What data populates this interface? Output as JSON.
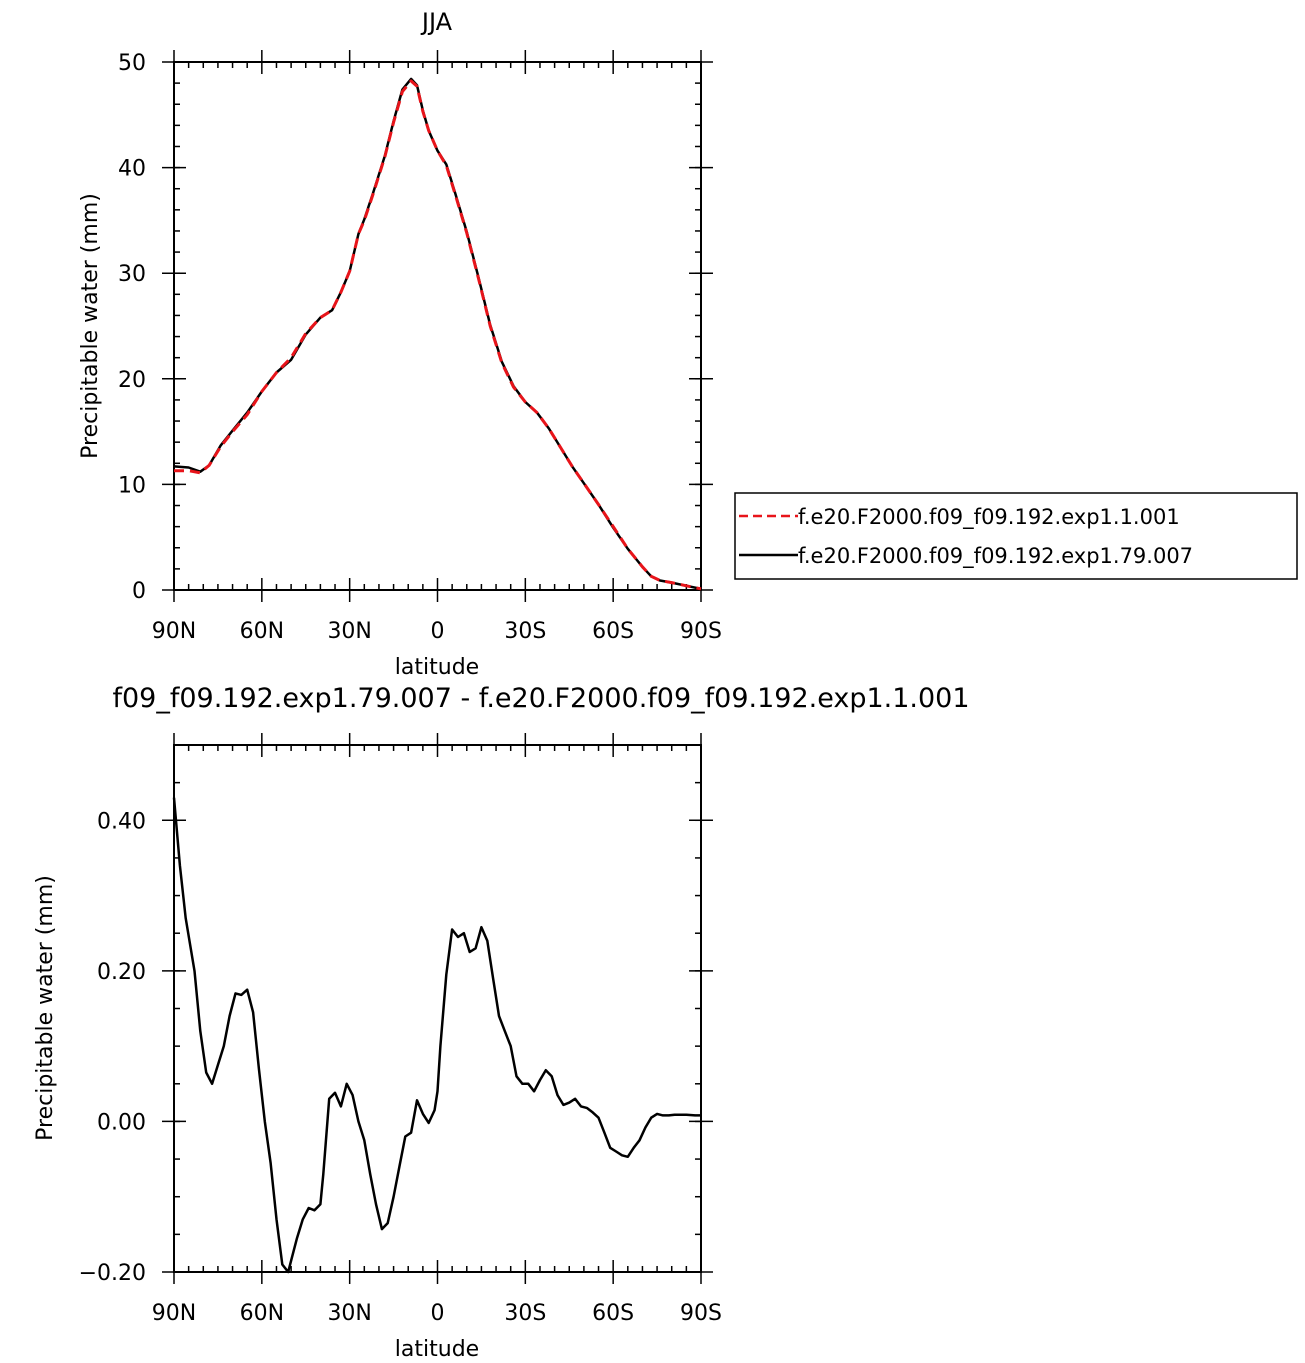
{
  "chart_data": [
    {
      "type": "line",
      "title": "JJA",
      "xlabel": "latitude",
      "ylabel": "Precipitable water (mm)",
      "xlim": [
        90,
        -90
      ],
      "ylim": [
        0,
        50
      ],
      "x_ticks": [
        {
          "value": 90,
          "label": "90N"
        },
        {
          "value": 60,
          "label": "60N"
        },
        {
          "value": 30,
          "label": "30N"
        },
        {
          "value": 0,
          "label": "0"
        },
        {
          "value": -30,
          "label": "30S"
        },
        {
          "value": -60,
          "label": "60S"
        },
        {
          "value": -90,
          "label": "90S"
        }
      ],
      "y_ticks": [
        {
          "value": 0,
          "label": "0"
        },
        {
          "value": 10,
          "label": "10"
        },
        {
          "value": 20,
          "label": "20"
        },
        {
          "value": 30,
          "label": "30"
        },
        {
          "value": 40,
          "label": "40"
        },
        {
          "value": 50,
          "label": "50"
        }
      ],
      "legend_position": "right",
      "series": [
        {
          "name": "f.e20.F2000.f09_f09.192.exp1.1.001",
          "color": "#e8141a",
          "dash": "dashed",
          "x": [
            90,
            85,
            81,
            78,
            74,
            70,
            65,
            60,
            55,
            50,
            45,
            40,
            36,
            33,
            30,
            27,
            25,
            22,
            18,
            15,
            12,
            9,
            7,
            5,
            3,
            0,
            -3,
            -6,
            -10,
            -14,
            -18,
            -22,
            -26,
            -30,
            -34,
            -38,
            -42,
            -46,
            -50,
            -55,
            -60,
            -65,
            -70,
            -73,
            -76,
            -80,
            -85,
            -90
          ],
          "y": [
            11.3,
            11.3,
            11.1,
            11.8,
            13.6,
            15.0,
            16.6,
            18.8,
            20.6,
            22.0,
            24.3,
            25.8,
            26.5,
            28.2,
            30.2,
            33.7,
            35.0,
            37.5,
            41.0,
            44.3,
            47.2,
            48.2,
            47.7,
            45.3,
            43.5,
            41.6,
            40.2,
            37.5,
            33.8,
            29.5,
            25.0,
            21.5,
            19.2,
            17.8,
            16.8,
            15.3,
            13.5,
            11.7,
            10.1,
            8.1,
            6.0,
            3.9,
            2.2,
            1.3,
            0.9,
            0.7,
            0.4,
            0.1
          ]
        },
        {
          "name": "f.e20.F2000.f09_f09.192.exp1.79.007",
          "color": "#000000",
          "dash": "solid",
          "x": [
            90,
            85,
            81,
            78,
            74,
            70,
            65,
            60,
            55,
            50,
            45,
            40,
            36,
            33,
            30,
            27,
            25,
            22,
            18,
            15,
            12,
            9,
            7,
            5,
            3,
            0,
            -3,
            -6,
            -10,
            -14,
            -18,
            -22,
            -26,
            -30,
            -34,
            -38,
            -42,
            -46,
            -50,
            -55,
            -60,
            -65,
            -70,
            -73,
            -76,
            -80,
            -85,
            -90
          ],
          "y": [
            11.7,
            11.6,
            11.2,
            11.8,
            13.7,
            15.1,
            16.8,
            18.8,
            20.6,
            21.8,
            24.2,
            25.8,
            26.5,
            28.2,
            30.2,
            33.7,
            35.1,
            37.6,
            41.1,
            44.4,
            47.4,
            48.4,
            47.8,
            45.4,
            43.5,
            41.6,
            40.3,
            37.6,
            33.9,
            29.6,
            25.1,
            21.6,
            19.3,
            17.8,
            16.8,
            15.3,
            13.5,
            11.7,
            10.1,
            8.1,
            5.9,
            3.9,
            2.2,
            1.3,
            0.9,
            0.7,
            0.4,
            0.1
          ]
        }
      ]
    },
    {
      "type": "line",
      "title": "f09_f09.192.exp1.79.007 - f.e20.F2000.f09_f09.192.exp1.1.001",
      "xlabel": "latitude",
      "ylabel": "Precipitable water (mm)",
      "xlim": [
        90,
        -90
      ],
      "ylim": [
        -0.2,
        0.5
      ],
      "x_ticks": [
        {
          "value": 90,
          "label": "90N"
        },
        {
          "value": 60,
          "label": "60N"
        },
        {
          "value": 30,
          "label": "30N"
        },
        {
          "value": 0,
          "label": "0"
        },
        {
          "value": -30,
          "label": "30S"
        },
        {
          "value": -60,
          "label": "60S"
        },
        {
          "value": -90,
          "label": "90S"
        }
      ],
      "y_ticks": [
        {
          "value": -0.2,
          "label": "−0.20"
        },
        {
          "value": 0.0,
          "label": "0.00"
        },
        {
          "value": 0.2,
          "label": "0.20"
        },
        {
          "value": 0.4,
          "label": "0.40"
        }
      ],
      "series": [
        {
          "color": "#000000",
          "dash": "solid",
          "x": [
            90,
            88,
            86,
            83,
            81,
            79,
            77,
            75,
            73,
            71,
            69,
            67,
            65,
            63,
            61,
            59,
            57,
            55,
            53,
            51,
            50,
            48,
            46,
            44,
            42,
            40,
            39,
            37,
            35,
            33,
            31,
            29,
            27,
            25,
            23,
            21,
            19,
            17,
            15,
            13,
            11,
            9,
            7,
            5,
            3,
            1,
            0,
            -1,
            -3,
            -5,
            -7,
            -9,
            -11,
            -13,
            -15,
            -17,
            -19,
            -21,
            -23,
            -25,
            -27,
            -29,
            -31,
            -33,
            -35,
            -37,
            -39,
            -41,
            -43,
            -45,
            -47,
            -49,
            -51,
            -53,
            -55,
            -57,
            -59,
            -61,
            -63,
            -65,
            -67,
            -69,
            -71,
            -73,
            -75,
            -77,
            -79,
            -81,
            -83,
            -85,
            -88,
            -90
          ],
          "y": [
            0.43,
            0.34,
            0.27,
            0.2,
            0.12,
            0.065,
            0.05,
            0.075,
            0.1,
            0.14,
            0.17,
            0.168,
            0.175,
            0.145,
            0.07,
            0.0,
            -0.055,
            -0.13,
            -0.19,
            -0.2,
            -0.185,
            -0.155,
            -0.13,
            -0.115,
            -0.118,
            -0.11,
            -0.07,
            0.03,
            0.038,
            0.02,
            0.05,
            0.035,
            0.0,
            -0.025,
            -0.07,
            -0.11,
            -0.143,
            -0.135,
            -0.1,
            -0.06,
            -0.02,
            -0.015,
            0.028,
            0.01,
            -0.002,
            0.015,
            0.04,
            0.1,
            0.195,
            0.255,
            0.245,
            0.25,
            0.225,
            0.23,
            0.258,
            0.24,
            0.19,
            0.14,
            0.12,
            0.1,
            0.06,
            0.05,
            0.05,
            0.04,
            0.055,
            0.068,
            0.06,
            0.035,
            0.022,
            0.025,
            0.03,
            0.02,
            0.018,
            0.012,
            0.005,
            -0.015,
            -0.035,
            -0.04,
            -0.045,
            -0.047,
            -0.035,
            -0.025,
            -0.008,
            0.005,
            0.01,
            0.008,
            0.008,
            0.009,
            0.009,
            0.009,
            0.008,
            0.008
          ]
        }
      ]
    }
  ]
}
